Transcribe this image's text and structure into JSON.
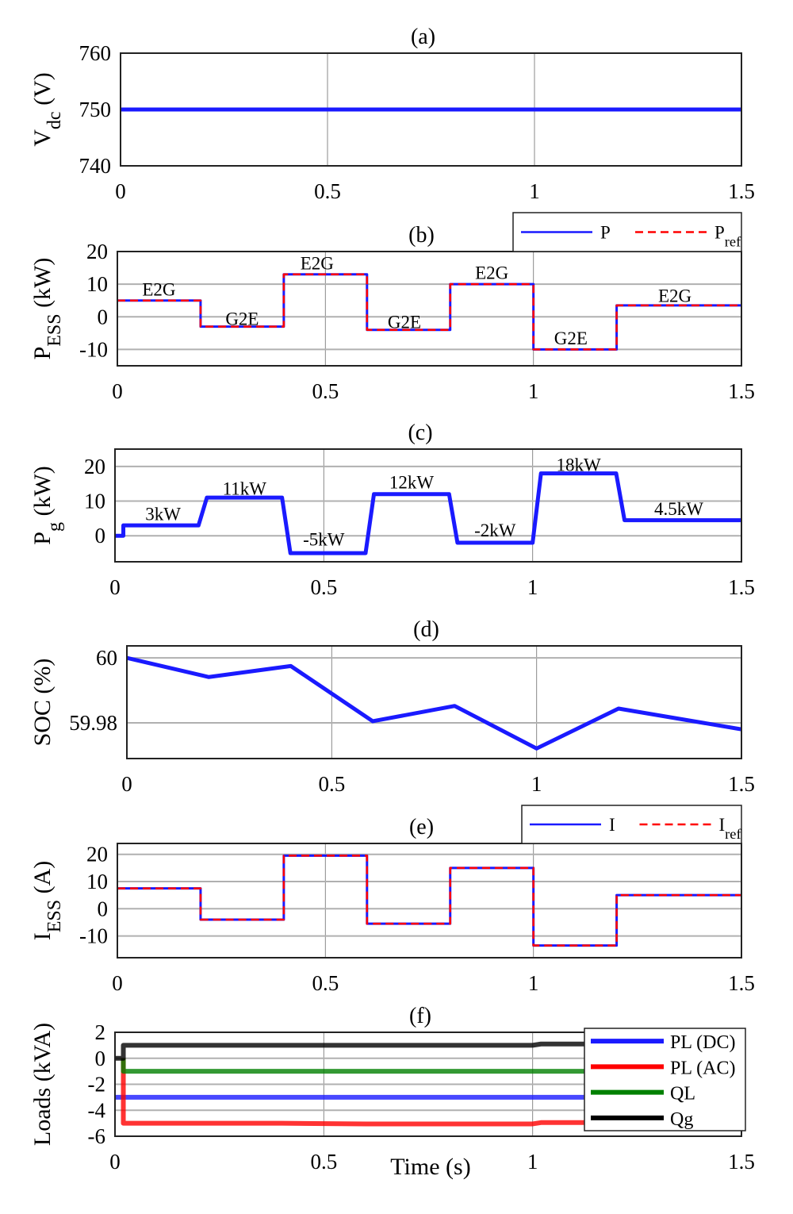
{
  "colors": {
    "blue": "#1a1aff",
    "red": "#ff0000",
    "green": "#008000",
    "black": "#000000",
    "grid": "#b0b0b0"
  },
  "chart_data": [
    {
      "title": "(a)",
      "type": "line",
      "ylabel": {
        "main": "V",
        "sub": "dc",
        "rest": " (V)"
      },
      "xlim": [
        0,
        1.5
      ],
      "ylim": [
        740,
        760
      ],
      "xticks": [
        "0",
        "0.5",
        "1",
        "1.5"
      ],
      "yticks": [
        "740",
        "750",
        "760"
      ],
      "grid": true,
      "series": [
        {
          "color": "blue",
          "x": [
            0,
            1.5
          ],
          "y": [
            750,
            750
          ]
        }
      ]
    },
    {
      "title": "(b)",
      "type": "line",
      "ylabel": {
        "main": "P",
        "sub": "ESS",
        "rest": " (kW)"
      },
      "xlim": [
        0,
        1.5
      ],
      "ylim": [
        -15,
        20
      ],
      "xticks": [
        "0",
        "0.5",
        "1",
        "1.5"
      ],
      "yticks": [
        "-10",
        "0",
        "10",
        "20"
      ],
      "grid": true,
      "legend": {
        "placement": "top-right outside",
        "entries": [
          {
            "main": "P",
            "sub": "",
            "color": "blue",
            "dash": false
          },
          {
            "main": "P",
            "sub": "ref",
            "color": "red",
            "dash": true
          }
        ]
      },
      "series": [
        {
          "name": "P",
          "color": "blue",
          "step": true,
          "x": [
            0,
            0.2,
            0.4,
            0.6,
            0.8,
            1.0,
            1.2,
            1.5
          ],
          "y": [
            5,
            -3,
            13,
            -4,
            10,
            -10,
            3.5,
            3.5
          ]
        },
        {
          "name": "Pref",
          "color": "red",
          "dash": true,
          "step": true,
          "x": [
            0,
            0.2,
            0.4,
            0.6,
            0.8,
            1.0,
            1.2,
            1.5
          ],
          "y": [
            5,
            -3,
            13,
            -4,
            10,
            -10,
            3.5,
            3.5
          ]
        }
      ],
      "annotations": [
        {
          "text": "E2G",
          "x": 0.1,
          "y": 8.5
        },
        {
          "text": "G2E",
          "x": 0.3,
          "y": -0.5
        },
        {
          "text": "E2G",
          "x": 0.48,
          "y": 16.5
        },
        {
          "text": "G2E",
          "x": 0.69,
          "y": -1.5
        },
        {
          "text": "E2G",
          "x": 0.9,
          "y": 13.5
        },
        {
          "text": "G2E",
          "x": 1.09,
          "y": -6.5
        },
        {
          "text": "E2G",
          "x": 1.34,
          "y": 6.5
        }
      ]
    },
    {
      "title": "(c)",
      "type": "line",
      "ylabel": {
        "main": "P",
        "sub": "g",
        "rest": " (kW)"
      },
      "xlim": [
        0,
        1.5
      ],
      "ylim": [
        -7.5,
        25
      ],
      "xticks": [
        "0",
        "0.5",
        "1",
        "1.5"
      ],
      "yticks": [
        "0",
        "10",
        "20"
      ],
      "grid": true,
      "series": [
        {
          "color": "blue",
          "x": [
            0,
            0.02,
            0.02,
            0.2,
            0.22,
            0.4,
            0.42,
            0.6,
            0.62,
            0.8,
            0.82,
            1.0,
            1.02,
            1.2,
            1.22,
            1.5
          ],
          "y": [
            0,
            0,
            3,
            3,
            11,
            11,
            -5,
            -5,
            12,
            12,
            -2,
            -2,
            18,
            18,
            4.5,
            4.5
          ]
        }
      ],
      "annotations": [
        {
          "text": "3kW",
          "x": 0.115,
          "y": 6.4
        },
        {
          "text": "11kW",
          "x": 0.31,
          "y": 13.7
        },
        {
          "text": "-5kW",
          "x": 0.5,
          "y": -1
        },
        {
          "text": "12kW",
          "x": 0.71,
          "y": 15.5
        },
        {
          "text": "-2kW",
          "x": 0.91,
          "y": 1.6
        },
        {
          "text": "18kW",
          "x": 1.11,
          "y": 20.5
        },
        {
          "text": "4.5kW",
          "x": 1.35,
          "y": 7.8
        }
      ]
    },
    {
      "title": "(d)",
      "type": "line",
      "ylabel": {
        "main": "SOC (%)",
        "sub": "",
        "rest": ""
      },
      "xlim": [
        0,
        1.5
      ],
      "ylim": [
        59.969,
        60.0037
      ],
      "xticks": [
        "0",
        "0.5",
        "1",
        "1.5"
      ],
      "yticks": [
        "59.98",
        "60"
      ],
      "grid": true,
      "series": [
        {
          "color": "blue",
          "x": [
            0,
            0.2,
            0.4,
            0.6,
            0.8,
            1.0,
            1.2,
            1.5
          ],
          "y": [
            60,
            59.9941,
            59.9975,
            59.9805,
            59.9852,
            59.9721,
            59.9844,
            59.978
          ]
        }
      ]
    },
    {
      "title": "(e)",
      "type": "line",
      "ylabel": {
        "main": "I",
        "sub": "ESS",
        "rest": " (A)"
      },
      "xlim": [
        0,
        1.5
      ],
      "ylim": [
        -18,
        24
      ],
      "xticks": [
        "0",
        "0.5",
        "1",
        "1.5"
      ],
      "yticks": [
        "-10",
        "0",
        "10",
        "20"
      ],
      "grid": true,
      "legend": {
        "placement": "top-right outside",
        "entries": [
          {
            "main": "I",
            "sub": "",
            "color": "blue",
            "dash": false
          },
          {
            "main": "I",
            "sub": "ref",
            "color": "red",
            "dash": true
          }
        ]
      },
      "series": [
        {
          "name": "I",
          "color": "blue",
          "step": true,
          "x": [
            0,
            0.2,
            0.4,
            0.6,
            0.8,
            1.0,
            1.2,
            1.5
          ],
          "y": [
            7.5,
            -4,
            19.5,
            -5.5,
            15,
            -13.5,
            5,
            5
          ]
        },
        {
          "name": "Iref",
          "color": "red",
          "dash": true,
          "step": true,
          "x": [
            0,
            0.2,
            0.4,
            0.6,
            0.8,
            1.0,
            1.2,
            1.5
          ],
          "y": [
            7.5,
            -4,
            19.5,
            -5.5,
            15,
            -13.5,
            5,
            5
          ]
        }
      ]
    },
    {
      "title": "(f)",
      "type": "line",
      "ylabel": {
        "main": "Loads (kVA)",
        "sub": "",
        "rest": ""
      },
      "xlabel": "Time (s)",
      "xlim": [
        0,
        1.5
      ],
      "ylim": [
        -6,
        2
      ],
      "xticks": [
        "0",
        "0.5",
        "1",
        "1.5"
      ],
      "yticks": [
        "-6",
        "-4",
        "-2",
        "0",
        "2"
      ],
      "grid": true,
      "legend": {
        "placement": "top-right inside",
        "entries": [
          {
            "main": "PL (DC)",
            "sub": "",
            "color": "blue"
          },
          {
            "main": "PL (AC)",
            "sub": "",
            "color": "red"
          },
          {
            "main": "QL",
            "sub": "",
            "color": "green"
          },
          {
            "main": "Qg",
            "sub": "",
            "color": "black"
          }
        ]
      },
      "series": [
        {
          "name": "PL (DC)",
          "color": "blue",
          "x": [
            0,
            1.5
          ],
          "y": [
            -3,
            -3
          ]
        },
        {
          "name": "PL (AC)",
          "color": "red",
          "x": [
            0.02,
            0.02,
            0.4,
            0.6,
            1.0,
            1.02,
            1.5
          ],
          "y": [
            0,
            -5,
            -5,
            -5.05,
            -5.05,
            -4.95,
            -4.95
          ]
        },
        {
          "name": "QL",
          "color": "green",
          "x": [
            0.02,
            0.02,
            1.5
          ],
          "y": [
            0,
            -1,
            -1
          ]
        },
        {
          "name": "Qg",
          "color": "black",
          "x": [
            0,
            0.02,
            0.02,
            1.0,
            1.02,
            1.5
          ],
          "y": [
            0,
            0,
            1,
            1,
            1.1,
            1.1
          ]
        }
      ]
    }
  ]
}
